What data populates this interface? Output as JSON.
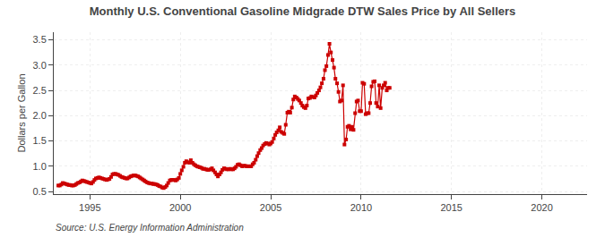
{
  "chart_data": {
    "type": "line",
    "title": "Monthly U.S. Conventional Gasoline Midgrade DTW Sales Price by All Sellers",
    "ylabel": "Dollars per Gallon",
    "source": "Source: U.S. Energy Information Administration",
    "color": "#cc0000",
    "marker": "square",
    "line_style": "solid",
    "grid": true,
    "xlim": [
      1993.0,
      2022.5
    ],
    "ylim": [
      0.45,
      3.65
    ],
    "xticks": [
      1995,
      2000,
      2005,
      2010,
      2015,
      2020
    ],
    "yticks": [
      0.5,
      {
        "value": 1.0,
        "label": "1.0"
      },
      1.5,
      {
        "value": 2.0,
        "label": "2.0"
      },
      2.5,
      {
        "value": 3.0,
        "label": "3.0"
      },
      3.5
    ],
    "x": [
      1993.25,
      1993.33,
      1993.42,
      1993.5,
      1993.58,
      1993.67,
      1993.75,
      1993.83,
      1993.92,
      1994.0,
      1994.08,
      1994.17,
      1994.25,
      1994.33,
      1994.42,
      1994.5,
      1994.58,
      1994.67,
      1994.75,
      1994.83,
      1994.92,
      1995.0,
      1995.08,
      1995.17,
      1995.25,
      1995.33,
      1995.42,
      1995.5,
      1995.58,
      1995.67,
      1995.75,
      1995.83,
      1995.92,
      1996.0,
      1996.08,
      1996.17,
      1996.25,
      1996.33,
      1996.42,
      1996.5,
      1996.58,
      1996.67,
      1996.75,
      1996.83,
      1996.92,
      1997.0,
      1997.08,
      1997.17,
      1997.25,
      1997.33,
      1997.42,
      1997.5,
      1997.58,
      1997.67,
      1997.75,
      1997.83,
      1997.92,
      1998.0,
      1998.08,
      1998.17,
      1998.25,
      1998.33,
      1998.42,
      1998.5,
      1998.58,
      1998.67,
      1998.75,
      1998.83,
      1998.92,
      1999.0,
      1999.08,
      1999.17,
      1999.25,
      1999.33,
      1999.42,
      1999.5,
      1999.58,
      1999.67,
      1999.75,
      1999.83,
      1999.92,
      2000.0,
      2000.08,
      2000.17,
      2000.25,
      2000.33,
      2000.42,
      2000.5,
      2000.58,
      2000.67,
      2000.75,
      2000.83,
      2000.92,
      2001.0,
      2001.08,
      2001.17,
      2001.25,
      2001.33,
      2001.42,
      2001.5,
      2001.58,
      2001.67,
      2001.75,
      2001.83,
      2001.92,
      2002.0,
      2002.08,
      2002.17,
      2002.25,
      2002.33,
      2002.42,
      2002.5,
      2002.58,
      2002.67,
      2002.75,
      2002.83,
      2002.92,
      2003.0,
      2003.08,
      2003.17,
      2003.25,
      2003.33,
      2003.42,
      2003.5,
      2003.58,
      2003.67,
      2003.75,
      2003.83,
      2003.92,
      2004.0,
      2004.08,
      2004.17,
      2004.25,
      2004.33,
      2004.42,
      2004.5,
      2004.58,
      2004.67,
      2004.75,
      2004.83,
      2004.92,
      2005.0,
      2005.08,
      2005.17,
      2005.25,
      2005.33,
      2005.42,
      2005.5,
      2005.58,
      2005.67,
      2005.75,
      2005.83,
      2005.92,
      2006.0,
      2006.08,
      2006.17,
      2006.25,
      2006.33,
      2006.42,
      2006.5,
      2006.58,
      2006.67,
      2006.75,
      2006.83,
      2006.92,
      2007.0,
      2007.08,
      2007.17,
      2007.25,
      2007.33,
      2007.42,
      2007.5,
      2007.58,
      2007.67,
      2007.75,
      2007.83,
      2007.92,
      2008.0,
      2008.08,
      2008.17,
      2008.25,
      2008.33,
      2008.42,
      2008.5,
      2008.58,
      2008.67,
      2008.75,
      2008.83,
      2008.92,
      2009.0,
      2009.08,
      2009.17,
      2009.25,
      2009.33,
      2009.42,
      2009.5,
      2009.58,
      2009.67,
      2009.75,
      2009.83,
      2009.92,
      2010.0,
      2010.08,
      2010.17,
      2010.25,
      2010.33,
      2010.42,
      2010.5,
      2010.58,
      2010.67,
      2010.75,
      2010.83,
      2010.92,
      2011.0,
      2011.08,
      2011.17,
      2011.25,
      2011.33,
      2011.42,
      2011.5,
      2011.58
    ],
    "values": [
      0.62,
      0.62,
      0.64,
      0.67,
      0.66,
      0.65,
      0.64,
      0.63,
      0.63,
      0.62,
      0.62,
      0.63,
      0.65,
      0.67,
      0.68,
      0.7,
      0.72,
      0.71,
      0.7,
      0.69,
      0.68,
      0.67,
      0.66,
      0.69,
      0.73,
      0.76,
      0.77,
      0.78,
      0.77,
      0.76,
      0.75,
      0.74,
      0.73,
      0.74,
      0.75,
      0.79,
      0.84,
      0.85,
      0.85,
      0.84,
      0.83,
      0.81,
      0.79,
      0.78,
      0.77,
      0.76,
      0.76,
      0.78,
      0.8,
      0.81,
      0.82,
      0.82,
      0.81,
      0.8,
      0.78,
      0.76,
      0.74,
      0.72,
      0.7,
      0.68,
      0.67,
      0.66,
      0.66,
      0.65,
      0.65,
      0.64,
      0.63,
      0.61,
      0.6,
      0.58,
      0.57,
      0.59,
      0.62,
      0.67,
      0.72,
      0.73,
      0.73,
      0.73,
      0.72,
      0.74,
      0.77,
      0.85,
      0.92,
      0.99,
      1.07,
      1.1,
      1.08,
      1.07,
      1.12,
      1.07,
      1.04,
      1.02,
      1.0,
      0.99,
      0.98,
      0.97,
      0.95,
      0.95,
      0.94,
      0.93,
      0.93,
      0.94,
      0.96,
      0.92,
      0.88,
      0.84,
      0.8,
      0.84,
      0.88,
      0.93,
      0.96,
      0.95,
      0.94,
      0.94,
      0.95,
      0.94,
      0.94,
      0.96,
      0.99,
      1.03,
      1.04,
      1.02,
      1.0,
      1.01,
      1.01,
      1.0,
      1.0,
      1.0,
      1.0,
      1.04,
      1.07,
      1.13,
      1.2,
      1.26,
      1.32,
      1.36,
      1.41,
      1.44,
      1.46,
      1.45,
      1.43,
      1.45,
      1.48,
      1.55,
      1.62,
      1.67,
      1.71,
      1.77,
      1.68,
      1.66,
      1.64,
      1.82,
      2.06,
      2.08,
      2.06,
      2.16,
      2.32,
      2.38,
      2.36,
      2.33,
      2.3,
      2.25,
      2.2,
      2.17,
      2.15,
      2.2,
      2.34,
      2.35,
      2.38,
      2.37,
      2.36,
      2.4,
      2.45,
      2.5,
      2.56,
      2.64,
      2.73,
      2.9,
      2.98,
      3.2,
      3.42,
      3.25,
      3.1,
      2.95,
      2.73,
      2.64,
      2.47,
      2.28,
      2.3,
      2.6,
      1.43,
      1.53,
      1.78,
      1.8,
      1.73,
      1.78,
      1.72,
      2.05,
      2.28,
      2.3,
      2.09,
      2.09,
      2.65,
      2.63,
      2.03,
      2.05,
      2.05,
      2.25,
      2.58,
      2.67,
      2.68,
      2.25,
      2.18,
      2.6,
      2.15,
      2.55,
      2.6,
      2.65,
      2.5,
      2.55,
      2.55
    ]
  }
}
